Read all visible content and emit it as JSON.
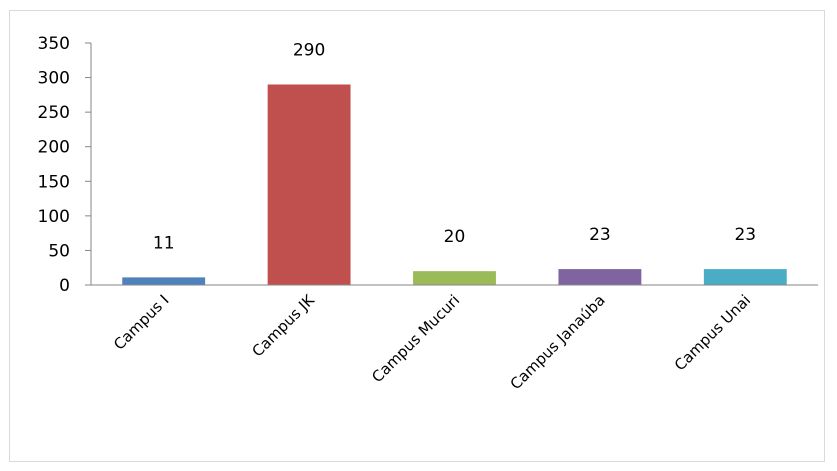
{
  "chart_data": {
    "type": "bar",
    "title": "",
    "xlabel": "",
    "ylabel": "",
    "categories": [
      "Campus I",
      "Campus JK",
      "Campus Mucuri",
      "Campus Janaúba",
      "Campus Unai"
    ],
    "values": [
      11,
      290,
      20,
      23,
      23
    ],
    "data_labels": [
      "11",
      "290",
      "20",
      "23",
      "23"
    ],
    "colors": [
      "#4f81bd",
      "#c0504d",
      "#9bbb59",
      "#8064a2",
      "#4bacc6"
    ],
    "ylim": [
      0,
      350
    ],
    "yticks": [
      0,
      50,
      100,
      150,
      200,
      250,
      300,
      350
    ],
    "ytick_labels": [
      "0",
      "50",
      "100",
      "150",
      "200",
      "250",
      "300",
      "350"
    ],
    "grid": false,
    "legend": "none"
  }
}
